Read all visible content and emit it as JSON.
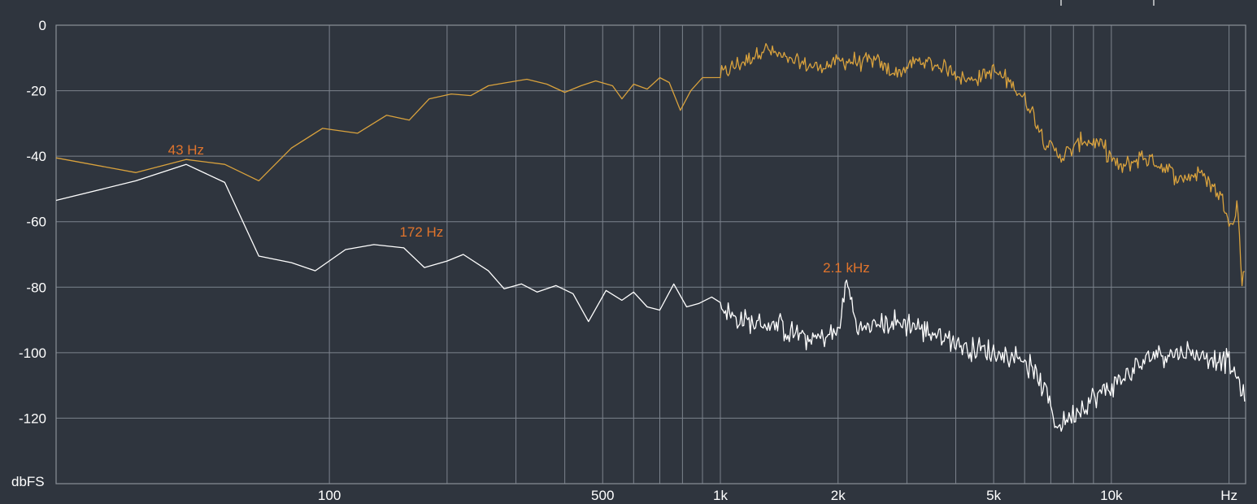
{
  "chart_data": {
    "type": "line",
    "x_scale": "log",
    "xlim": [
      20,
      22050
    ],
    "ylim": [
      -140,
      0
    ],
    "ylabel": "dbFS",
    "y_ticks": [
      {
        "value": 0,
        "label": "0"
      },
      {
        "value": -20,
        "label": "-20"
      },
      {
        "value": -40,
        "label": "-40"
      },
      {
        "value": -60,
        "label": "-60"
      },
      {
        "value": -80,
        "label": "-80"
      },
      {
        "value": -100,
        "label": "-100"
      },
      {
        "value": -120,
        "label": "-120"
      }
    ],
    "x_ticks": [
      {
        "value": 100,
        "label": "100"
      },
      {
        "value": 500,
        "label": "500"
      },
      {
        "value": 1000,
        "label": "1k"
      },
      {
        "value": 2000,
        "label": "2k"
      },
      {
        "value": 5000,
        "label": "5k"
      },
      {
        "value": 10000,
        "label": "10k"
      },
      {
        "value": 20000,
        "label": "Hz"
      }
    ],
    "x_gridlines": [
      100,
      200,
      300,
      400,
      500,
      600,
      700,
      800,
      900,
      1000,
      2000,
      3000,
      4000,
      5000,
      6000,
      7000,
      8000,
      9000,
      10000,
      20000
    ],
    "grid": true,
    "series": [
      {
        "color": "#d9a23d",
        "noise_from_hz": 1000,
        "points": [
          [
            20,
            -40.5
          ],
          [
            32,
            -45
          ],
          [
            43,
            -41
          ],
          [
            54,
            -42.5
          ],
          [
            66,
            -47.5
          ],
          [
            80,
            -37.5
          ],
          [
            96,
            -31.5
          ],
          [
            118,
            -33
          ],
          [
            140,
            -27.5
          ],
          [
            160,
            -29
          ],
          [
            180,
            -22.5
          ],
          [
            205,
            -21
          ],
          [
            230,
            -21.5
          ],
          [
            255,
            -18.5
          ],
          [
            285,
            -17.5
          ],
          [
            320,
            -16.5
          ],
          [
            360,
            -18
          ],
          [
            400,
            -20.5
          ],
          [
            440,
            -18.5
          ],
          [
            480,
            -17
          ],
          [
            530,
            -18.5
          ],
          [
            560,
            -22.5
          ],
          [
            600,
            -18
          ],
          [
            650,
            -19.5
          ],
          [
            700,
            -16
          ],
          [
            740,
            -17.5
          ],
          [
            790,
            -26
          ],
          [
            840,
            -20
          ],
          [
            900,
            -16
          ],
          [
            1000,
            -15
          ],
          [
            1150,
            -11
          ],
          [
            1300,
            -7
          ],
          [
            1500,
            -11
          ],
          [
            1800,
            -13
          ],
          [
            2000,
            -11
          ],
          [
            2500,
            -11
          ],
          [
            2800,
            -15
          ],
          [
            3200,
            -11
          ],
          [
            3800,
            -13
          ],
          [
            4300,
            -17
          ],
          [
            5000,
            -14
          ],
          [
            5600,
            -18
          ],
          [
            6200,
            -25
          ],
          [
            6800,
            -36
          ],
          [
            7500,
            -40
          ],
          [
            8500,
            -35
          ],
          [
            9500,
            -37
          ],
          [
            10500,
            -44
          ],
          [
            12000,
            -40
          ],
          [
            13500,
            -43
          ],
          [
            15000,
            -47
          ],
          [
            17000,
            -45
          ],
          [
            19000,
            -52
          ],
          [
            20500,
            -62
          ],
          [
            21000,
            -53
          ],
          [
            21600,
            -79
          ],
          [
            22050,
            -72
          ]
        ]
      },
      {
        "color": "#ffffff",
        "noise_from_hz": 1000,
        "points": [
          [
            20,
            -53.5
          ],
          [
            32,
            -47.5
          ],
          [
            43,
            -42.5
          ],
          [
            54,
            -48
          ],
          [
            66,
            -70.5
          ],
          [
            80,
            -72.5
          ],
          [
            92,
            -75
          ],
          [
            110,
            -68.5
          ],
          [
            130,
            -67
          ],
          [
            155,
            -68
          ],
          [
            175,
            -74
          ],
          [
            200,
            -72
          ],
          [
            220,
            -70
          ],
          [
            255,
            -75
          ],
          [
            280,
            -80.5
          ],
          [
            310,
            -79
          ],
          [
            340,
            -81.5
          ],
          [
            380,
            -79.5
          ],
          [
            420,
            -82
          ],
          [
            460,
            -90.5
          ],
          [
            510,
            -81
          ],
          [
            560,
            -84
          ],
          [
            600,
            -81.5
          ],
          [
            650,
            -86
          ],
          [
            700,
            -87
          ],
          [
            760,
            -79
          ],
          [
            820,
            -86
          ],
          [
            880,
            -85
          ],
          [
            950,
            -83
          ],
          [
            1100,
            -90
          ],
          [
            1400,
            -92
          ],
          [
            1700,
            -96
          ],
          [
            2000,
            -94
          ],
          [
            2100,
            -78
          ],
          [
            2250,
            -93
          ],
          [
            2600,
            -91
          ],
          [
            3000,
            -91
          ],
          [
            3500,
            -94
          ],
          [
            4200,
            -98
          ],
          [
            5000,
            -100
          ],
          [
            6000,
            -102
          ],
          [
            6800,
            -112
          ],
          [
            7300,
            -123
          ],
          [
            8000,
            -118
          ],
          [
            9500,
            -112
          ],
          [
            11000,
            -107
          ],
          [
            13000,
            -100
          ],
          [
            15500,
            -100
          ],
          [
            18000,
            -101
          ],
          [
            20000,
            -103
          ],
          [
            21000,
            -108
          ],
          [
            21700,
            -112
          ],
          [
            22050,
            -122
          ]
        ]
      }
    ],
    "annotations": [
      {
        "text": "43 Hz",
        "x_hz": 43,
        "y_db": -39.5
      },
      {
        "text": "172 Hz",
        "x_hz": 172,
        "y_db": -64.5
      },
      {
        "text": "2.1  kHz",
        "x_hz": 2100,
        "y_db": -75.5
      }
    ]
  }
}
